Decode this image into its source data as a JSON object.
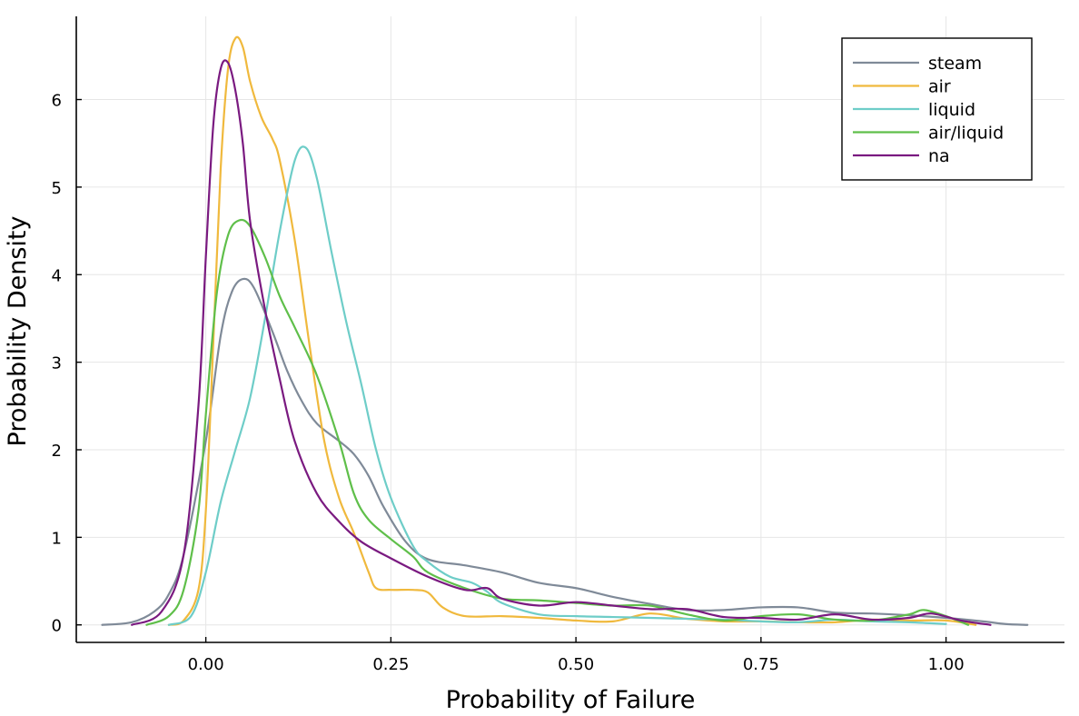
{
  "chart_data": {
    "type": "line",
    "title": "",
    "xlabel": "Probability of Failure",
    "ylabel": "Probability Density",
    "xlim": [
      -0.175,
      1.16
    ],
    "ylim": [
      -0.2,
      6.95
    ],
    "xticks": [
      0.0,
      0.25,
      0.5,
      0.75,
      1.0
    ],
    "xtick_labels": [
      "0.00",
      "0.25",
      "0.50",
      "0.75",
      "1.00"
    ],
    "yticks": [
      0,
      1,
      2,
      3,
      4,
      5,
      6
    ],
    "ytick_labels": [
      "0",
      "1",
      "2",
      "3",
      "4",
      "5",
      "6"
    ],
    "grid": true,
    "legend_position": "top-right",
    "series": [
      {
        "name": "steam",
        "color": "#7f8a98",
        "x": [
          -0.14,
          -0.1,
          -0.07,
          -0.05,
          -0.03,
          0.0,
          0.02,
          0.035,
          0.05,
          0.065,
          0.09,
          0.11,
          0.13,
          0.15,
          0.18,
          0.2,
          0.22,
          0.24,
          0.27,
          0.3,
          0.35,
          0.4,
          0.45,
          0.5,
          0.55,
          0.6,
          0.65,
          0.7,
          0.75,
          0.8,
          0.85,
          0.9,
          0.95,
          1.0,
          1.05,
          1.08,
          1.11
        ],
        "y": [
          0.0,
          0.03,
          0.15,
          0.35,
          0.8,
          2.1,
          3.3,
          3.8,
          3.95,
          3.85,
          3.35,
          2.9,
          2.55,
          2.3,
          2.1,
          1.95,
          1.7,
          1.35,
          0.95,
          0.75,
          0.68,
          0.6,
          0.48,
          0.42,
          0.32,
          0.24,
          0.17,
          0.17,
          0.2,
          0.2,
          0.14,
          0.13,
          0.11,
          0.08,
          0.04,
          0.01,
          0.0
        ]
      },
      {
        "name": "air",
        "color": "#f0b93d",
        "x": [
          -0.05,
          -0.03,
          -0.01,
          0.0,
          0.01,
          0.02,
          0.03,
          0.04,
          0.05,
          0.06,
          0.075,
          0.09,
          0.1,
          0.12,
          0.14,
          0.16,
          0.18,
          0.2,
          0.22,
          0.23,
          0.25,
          0.28,
          0.3,
          0.32,
          0.35,
          0.4,
          0.45,
          0.5,
          0.55,
          0.6,
          0.65,
          0.7,
          0.75,
          0.8,
          0.85,
          0.9,
          0.95,
          1.0,
          1.04
        ],
        "y": [
          0.0,
          0.05,
          0.4,
          1.3,
          3.2,
          5.2,
          6.35,
          6.7,
          6.6,
          6.2,
          5.8,
          5.55,
          5.3,
          4.4,
          3.2,
          2.1,
          1.45,
          1.05,
          0.6,
          0.42,
          0.4,
          0.4,
          0.37,
          0.2,
          0.1,
          0.1,
          0.08,
          0.05,
          0.04,
          0.13,
          0.07,
          0.04,
          0.04,
          0.03,
          0.03,
          0.06,
          0.05,
          0.05,
          0.0
        ]
      },
      {
        "name": "liquid",
        "color": "#6ecdc8",
        "x": [
          -0.05,
          -0.02,
          0.0,
          0.02,
          0.04,
          0.06,
          0.08,
          0.1,
          0.12,
          0.135,
          0.15,
          0.17,
          0.19,
          0.21,
          0.23,
          0.25,
          0.28,
          0.3,
          0.33,
          0.36,
          0.38,
          0.4,
          0.45,
          0.5,
          0.55,
          0.6,
          0.65,
          0.7,
          0.75,
          0.8,
          0.85,
          0.9,
          0.95,
          1.0
        ],
        "y": [
          0.0,
          0.1,
          0.6,
          1.4,
          2.0,
          2.6,
          3.5,
          4.5,
          5.3,
          5.45,
          5.1,
          4.25,
          3.45,
          2.75,
          2.0,
          1.45,
          0.9,
          0.72,
          0.55,
          0.48,
          0.38,
          0.25,
          0.12,
          0.1,
          0.09,
          0.08,
          0.07,
          0.06,
          0.04,
          0.03,
          0.06,
          0.04,
          0.03,
          0.01
        ]
      },
      {
        "name": "air/liquid",
        "color": "#5fbf4a",
        "x": [
          -0.08,
          -0.05,
          -0.03,
          -0.01,
          0.0,
          0.015,
          0.03,
          0.045,
          0.06,
          0.08,
          0.1,
          0.12,
          0.15,
          0.18,
          0.2,
          0.22,
          0.25,
          0.28,
          0.3,
          0.35,
          0.4,
          0.45,
          0.5,
          0.55,
          0.6,
          0.65,
          0.7,
          0.75,
          0.8,
          0.85,
          0.9,
          0.95,
          0.97,
          1.0,
          1.03
        ],
        "y": [
          0.0,
          0.1,
          0.4,
          1.3,
          2.4,
          3.8,
          4.45,
          4.62,
          4.55,
          4.2,
          3.75,
          3.4,
          2.85,
          2.1,
          1.5,
          1.2,
          0.98,
          0.78,
          0.6,
          0.42,
          0.3,
          0.28,
          0.25,
          0.22,
          0.22,
          0.12,
          0.05,
          0.1,
          0.12,
          0.06,
          0.05,
          0.12,
          0.17,
          0.1,
          0.0
        ]
      },
      {
        "name": "na",
        "color": "#7a1a80",
        "x": [
          -0.1,
          -0.06,
          -0.03,
          -0.01,
          0.0,
          0.01,
          0.02,
          0.03,
          0.04,
          0.05,
          0.06,
          0.08,
          0.1,
          0.12,
          0.15,
          0.18,
          0.21,
          0.25,
          0.3,
          0.35,
          0.38,
          0.4,
          0.45,
          0.5,
          0.55,
          0.6,
          0.65,
          0.7,
          0.75,
          0.8,
          0.85,
          0.9,
          0.95,
          0.98,
          1.02,
          1.06
        ],
        "y": [
          0.0,
          0.15,
          0.8,
          2.5,
          4.2,
          5.7,
          6.35,
          6.42,
          6.1,
          5.5,
          4.6,
          3.6,
          2.8,
          2.1,
          1.5,
          1.18,
          0.95,
          0.76,
          0.55,
          0.4,
          0.42,
          0.3,
          0.22,
          0.26,
          0.22,
          0.18,
          0.18,
          0.09,
          0.08,
          0.06,
          0.12,
          0.06,
          0.08,
          0.13,
          0.05,
          0.0
        ]
      }
    ]
  }
}
